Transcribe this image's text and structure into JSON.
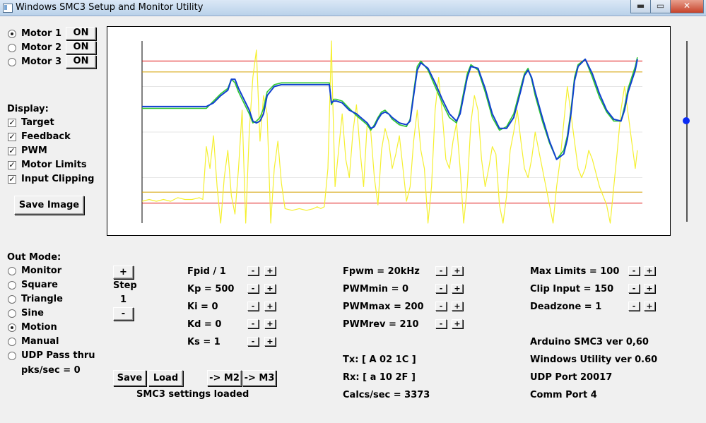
{
  "window": {
    "title": "Windows SMC3 Setup and Monitor Utility",
    "min": "▬",
    "max": "▭",
    "close": "✕"
  },
  "motors": [
    {
      "label": "Motor 1",
      "selected": true,
      "button": "ON"
    },
    {
      "label": "Motor 2",
      "selected": false,
      "button": "ON"
    },
    {
      "label": "Motor 3",
      "selected": false,
      "button": "ON"
    }
  ],
  "display": {
    "heading": "Display:",
    "options": [
      {
        "label": "Target",
        "checked": true
      },
      {
        "label": "Feedback",
        "checked": true
      },
      {
        "label": "PWM",
        "checked": true
      },
      {
        "label": "Motor Limits",
        "checked": true
      },
      {
        "label": "Input Clipping",
        "checked": true
      }
    ],
    "save_image": "Save Image",
    "check_mark": "✓"
  },
  "out_mode": {
    "heading": "Out Mode:",
    "options": [
      {
        "label": "Monitor",
        "selected": false
      },
      {
        "label": "Square",
        "selected": false
      },
      {
        "label": "Triangle",
        "selected": false
      },
      {
        "label": "Sine",
        "selected": false
      },
      {
        "label": "Motion",
        "selected": true
      },
      {
        "label": "Manual",
        "selected": false
      },
      {
        "label": "UDP Pass thru",
        "selected": false
      }
    ],
    "pks": "pks/sec = 0"
  },
  "step": {
    "plus": "+",
    "label": "Step",
    "value": "1",
    "minus": "-"
  },
  "pid": [
    "Fpid / 1",
    "Kp = 500",
    "Ki = 0",
    "Kd = 0",
    "Ks = 1"
  ],
  "pwm": [
    "Fpwm = 20kHz",
    "PWMmin = 0",
    "PWMmax = 200",
    "PWMrev = 210"
  ],
  "limits": [
    "Max Limits = 100",
    "Clip Input = 150",
    "Deadzone = 1"
  ],
  "adjust": {
    "minus": "-",
    "plus": "+"
  },
  "comm": {
    "tx": "Tx: [ A 02 1C ]",
    "rx": "Rx: [ a 10 2F ]",
    "calcs": "Calcs/sec = 3373"
  },
  "info": [
    "Arduino SMC3 ver 0,60",
    "Windows Utility ver 0.60",
    "UDP Port 20017",
    "Comm Port 4"
  ],
  "actions": {
    "save": "Save",
    "load": "Load",
    "m2": "-> M2",
    "m3": "-> M3",
    "status": "SMC3 settings loaded"
  },
  "slider": {
    "value_fraction": 0.44
  },
  "chart_data": {
    "type": "line",
    "ylim": [
      0,
      1
    ],
    "xlim": [
      0,
      700
    ],
    "colors": {
      "limit": "#e01010",
      "clip": "#d4a000",
      "target": "#32c832",
      "feedback": "#1040d0",
      "pwm": "#f5f030",
      "axis": "#000000"
    },
    "limits": {
      "motor": [
        0.89,
        0.11
      ],
      "clip": [
        0.83,
        0.17
      ]
    },
    "series": [
      {
        "role": "feedback",
        "x": [
          0,
          90,
          100,
          110,
          120,
          125,
          130,
          135,
          140,
          150,
          155,
          160,
          165,
          170,
          175,
          185,
          195,
          210,
          250,
          262,
          265,
          268,
          272,
          280,
          290,
          300,
          315,
          320,
          325,
          330,
          335,
          340,
          345,
          350,
          360,
          370,
          375,
          380,
          385,
          390,
          400,
          410,
          420,
          430,
          440,
          445,
          450,
          455,
          460,
          470,
          480,
          490,
          500,
          510,
          520,
          530,
          535,
          540,
          545,
          550,
          560,
          570,
          580,
          590,
          595,
          600,
          605,
          610,
          620,
          630,
          640,
          650,
          660,
          670,
          675,
          680,
          690,
          693
        ],
        "values": [
          0.64,
          0.64,
          0.66,
          0.7,
          0.73,
          0.79,
          0.79,
          0.74,
          0.7,
          0.62,
          0.56,
          0.55,
          0.56,
          0.6,
          0.7,
          0.75,
          0.76,
          0.76,
          0.76,
          0.76,
          0.66,
          0.67,
          0.67,
          0.66,
          0.62,
          0.6,
          0.55,
          0.52,
          0.53,
          0.57,
          0.6,
          0.61,
          0.6,
          0.58,
          0.55,
          0.54,
          0.56,
          0.7,
          0.84,
          0.88,
          0.85,
          0.77,
          0.68,
          0.6,
          0.56,
          0.6,
          0.7,
          0.8,
          0.86,
          0.85,
          0.74,
          0.6,
          0.52,
          0.52,
          0.58,
          0.73,
          0.81,
          0.84,
          0.8,
          0.72,
          0.58,
          0.45,
          0.35,
          0.38,
          0.46,
          0.6,
          0.78,
          0.86,
          0.9,
          0.82,
          0.71,
          0.62,
          0.57,
          0.56,
          0.62,
          0.72,
          0.84,
          0.9
        ]
      },
      {
        "role": "target",
        "x": [
          0,
          90,
          100,
          110,
          120,
          125,
          130,
          135,
          140,
          150,
          155,
          160,
          165,
          170,
          175,
          185,
          195,
          210,
          250,
          262,
          265,
          268,
          272,
          280,
          290,
          300,
          315,
          320,
          325,
          330,
          335,
          340,
          345,
          350,
          360,
          370,
          375,
          380,
          385,
          390,
          400,
          410,
          420,
          430,
          440,
          445,
          450,
          455,
          460,
          470,
          480,
          490,
          500,
          510,
          520,
          530,
          535,
          540,
          545,
          550,
          560,
          570,
          580,
          590,
          595,
          600,
          605,
          610,
          620,
          630,
          640,
          650,
          660,
          670,
          675,
          680,
          690,
          693
        ],
        "values": [
          0.63,
          0.63,
          0.67,
          0.71,
          0.74,
          0.79,
          0.77,
          0.72,
          0.68,
          0.6,
          0.55,
          0.56,
          0.58,
          0.63,
          0.72,
          0.76,
          0.77,
          0.77,
          0.77,
          0.77,
          0.65,
          0.68,
          0.68,
          0.67,
          0.63,
          0.59,
          0.54,
          0.51,
          0.54,
          0.58,
          0.61,
          0.62,
          0.6,
          0.57,
          0.54,
          0.53,
          0.57,
          0.72,
          0.86,
          0.89,
          0.84,
          0.75,
          0.66,
          0.58,
          0.55,
          0.62,
          0.72,
          0.82,
          0.87,
          0.84,
          0.72,
          0.58,
          0.51,
          0.53,
          0.6,
          0.75,
          0.82,
          0.85,
          0.79,
          0.7,
          0.56,
          0.44,
          0.35,
          0.4,
          0.48,
          0.62,
          0.8,
          0.87,
          0.9,
          0.8,
          0.69,
          0.61,
          0.56,
          0.56,
          0.64,
          0.74,
          0.86,
          0.91
        ]
      },
      {
        "role": "pwm",
        "x": [
          0,
          10,
          20,
          30,
          40,
          50,
          60,
          70,
          80,
          85,
          90,
          95,
          100,
          105,
          110,
          115,
          120,
          125,
          130,
          135,
          140,
          145,
          150,
          155,
          160,
          165,
          170,
          175,
          180,
          185,
          190,
          195,
          200,
          210,
          220,
          230,
          240,
          245,
          250,
          255,
          260,
          265,
          266,
          270,
          275,
          280,
          285,
          290,
          295,
          300,
          305,
          310,
          315,
          320,
          325,
          330,
          335,
          340,
          345,
          350,
          355,
          360,
          365,
          370,
          375,
          380,
          385,
          390,
          395,
          400,
          405,
          410,
          415,
          420,
          425,
          430,
          435,
          440,
          445,
          450,
          455,
          460,
          465,
          470,
          475,
          480,
          485,
          490,
          495,
          500,
          505,
          510,
          515,
          520,
          525,
          530,
          535,
          540,
          545,
          550,
          555,
          560,
          565,
          570,
          575,
          580,
          585,
          590,
          595,
          600,
          605,
          610,
          615,
          620,
          625,
          630,
          640,
          650,
          655,
          660,
          665,
          670,
          675,
          680,
          685,
          690,
          693
        ],
        "values": [
          0.12,
          0.13,
          0.12,
          0.13,
          0.12,
          0.14,
          0.13,
          0.13,
          0.14,
          0.13,
          0.42,
          0.3,
          0.48,
          0.2,
          0.0,
          0.25,
          0.4,
          0.15,
          0.05,
          0.3,
          0.62,
          0.0,
          0.5,
          0.8,
          0.95,
          0.45,
          0.7,
          0.6,
          0.0,
          0.3,
          0.45,
          0.22,
          0.08,
          0.07,
          0.08,
          0.07,
          0.08,
          0.09,
          0.08,
          0.09,
          0.3,
          1.0,
          0.8,
          0.2,
          0.4,
          0.6,
          0.35,
          0.25,
          0.5,
          0.65,
          0.4,
          0.2,
          0.55,
          0.5,
          0.25,
          0.1,
          0.4,
          0.52,
          0.45,
          0.3,
          0.38,
          0.48,
          0.3,
          0.12,
          0.2,
          0.45,
          0.62,
          0.4,
          0.3,
          0.0,
          0.2,
          0.62,
          0.8,
          0.6,
          0.35,
          0.3,
          0.45,
          0.55,
          0.3,
          0.0,
          0.2,
          0.55,
          0.7,
          0.62,
          0.35,
          0.2,
          0.3,
          0.42,
          0.38,
          0.1,
          0.0,
          0.15,
          0.4,
          0.5,
          0.62,
          0.45,
          0.3,
          0.25,
          0.35,
          0.5,
          0.4,
          0.3,
          0.2,
          0.1,
          0.0,
          0.2,
          0.35,
          0.55,
          0.75,
          0.6,
          0.45,
          0.3,
          0.25,
          0.3,
          0.4,
          0.35,
          0.2,
          0.1,
          0.0,
          0.2,
          0.4,
          0.62,
          0.75,
          0.6,
          0.45,
          0.3,
          0.4
        ]
      }
    ]
  }
}
